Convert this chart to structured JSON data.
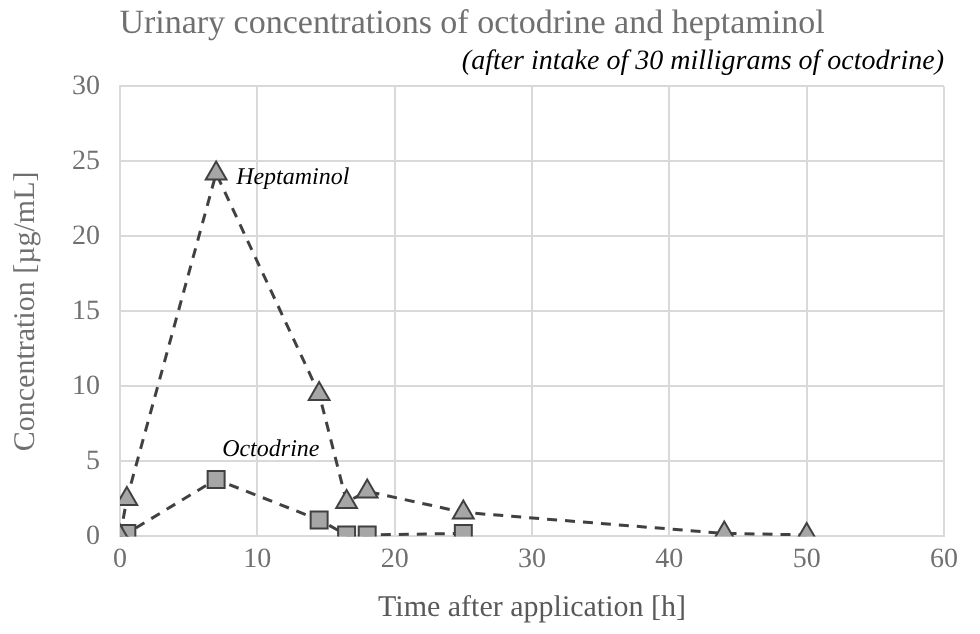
{
  "chart_data": {
    "type": "line",
    "title": "Urinary concentrations of octodrine and heptaminol",
    "subtitle": "(after intake of 30 milligrams of octodrine)",
    "xlabel": "Time after application [h]",
    "ylabel": "Concentration [µg/mL]",
    "xlim": [
      0,
      60
    ],
    "xticks": [
      0,
      10,
      20,
      30,
      40,
      50,
      60
    ],
    "ylim": [
      0,
      30
    ],
    "yticks": [
      0,
      5,
      10,
      15,
      20,
      25,
      30
    ],
    "grid": true,
    "legend": false,
    "line_style": "dashed",
    "series": [
      {
        "name": "Heptaminol",
        "color": "#a6a6a6",
        "marker": "triangle",
        "x": [
          0,
          0.5,
          7,
          14.5,
          16.5,
          18,
          25,
          44,
          50
        ],
        "values": [
          0,
          2.5,
          24.2,
          9.5,
          2.3,
          3.0,
          1.6,
          0.2,
          0.1
        ]
      },
      {
        "name": "Octodrine",
        "color": "#a6a6a6",
        "marker": "square",
        "x": [
          0,
          0.5,
          7,
          14.5,
          16.5,
          18,
          25
        ],
        "values": [
          0,
          0.2,
          3.8,
          1.1,
          0.1,
          0.1,
          0.2
        ]
      }
    ]
  }
}
